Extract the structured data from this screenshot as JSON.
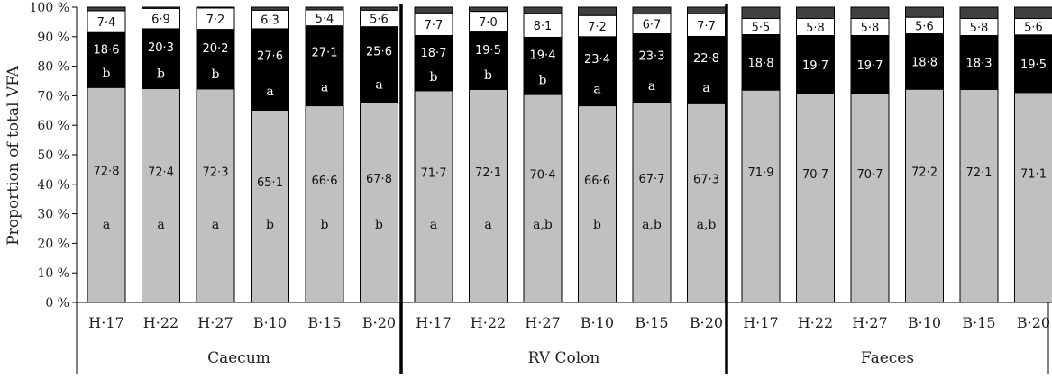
{
  "chart_data": {
    "type": "bar",
    "stacked": true,
    "ylabel": "Proportion of total VFA",
    "ylim": [
      0,
      100
    ],
    "yticks": [
      "0 %",
      "10 %",
      "20 %",
      "30 %",
      "40 %",
      "50 %",
      "60 %",
      "70 %",
      "80 %",
      "90 %",
      "100 %"
    ],
    "grid": false,
    "colors": {
      "bottom": "#c0c0c0",
      "middle": "#000000",
      "upper": "#ffffff",
      "top": "#404040",
      "outline": "#000000"
    },
    "groups": [
      {
        "name": "Caecum",
        "categories": [
          "H·17",
          "H·22",
          "H·27",
          "B·10",
          "B·15",
          "B·20"
        ],
        "bottom": [
          72.8,
          72.4,
          72.3,
          65.1,
          66.6,
          67.8
        ],
        "bottom_text": [
          "72·8",
          "72·4",
          "72·3",
          "65·1",
          "66·6",
          "67·8"
        ],
        "bottom_sig": [
          "a",
          "a",
          "a",
          "b",
          "b",
          "b"
        ],
        "middle": [
          18.6,
          20.3,
          20.2,
          27.6,
          27.1,
          25.6
        ],
        "middle_text": [
          "18·6",
          "20·3",
          "20·2",
          "27·6",
          "27·1",
          "25·6"
        ],
        "middle_sig": [
          "b",
          "b",
          "b",
          "a",
          "a",
          "a"
        ],
        "upper": [
          7.4,
          6.9,
          7.2,
          6.3,
          5.4,
          5.6
        ],
        "upper_text": [
          "7·4",
          "6·9",
          "7·2",
          "6·3",
          "5·4",
          "5·6"
        ]
      },
      {
        "name": "RV Colon",
        "categories": [
          "H·17",
          "H·22",
          "H·27",
          "B·10",
          "B·15",
          "B·20"
        ],
        "bottom": [
          71.7,
          72.1,
          70.4,
          66.6,
          67.7,
          67.3
        ],
        "bottom_text": [
          "71·7",
          "72·1",
          "70·4",
          "66·6",
          "67·7",
          "67·3"
        ],
        "bottom_sig": [
          "a",
          "a",
          "a,b",
          "b",
          "a,b",
          "a,b"
        ],
        "middle": [
          18.7,
          19.5,
          19.4,
          23.4,
          23.3,
          22.8
        ],
        "middle_text": [
          "18·7",
          "19·5",
          "19·4",
          "23·4",
          "23·3",
          "22·8"
        ],
        "middle_sig": [
          "b",
          "b",
          "b",
          "a",
          "a",
          "a"
        ],
        "upper": [
          7.7,
          7.0,
          8.1,
          7.2,
          6.7,
          7.7
        ],
        "upper_text": [
          "7·7",
          "7·0",
          "8·1",
          "7·2",
          "6·7",
          "7·7"
        ]
      },
      {
        "name": "Faeces",
        "categories": [
          "H·17",
          "H·22",
          "H·27",
          "B·10",
          "B·15",
          "B·20"
        ],
        "bottom": [
          71.9,
          70.7,
          70.7,
          72.2,
          72.1,
          71.1
        ],
        "bottom_text": [
          "71·9",
          "70·7",
          "70·7",
          "72·2",
          "72·1",
          "71·1"
        ],
        "bottom_sig": [
          "",
          "",
          "",
          "",
          "",
          ""
        ],
        "middle": [
          18.8,
          19.7,
          19.7,
          18.8,
          18.3,
          19.5
        ],
        "middle_text": [
          "18·8",
          "19·7",
          "19·7",
          "18·8",
          "18·3",
          "19·5"
        ],
        "middle_sig": [
          "",
          "",
          "",
          "",
          "",
          ""
        ],
        "upper": [
          5.5,
          5.8,
          5.8,
          5.6,
          5.8,
          5.6
        ],
        "upper_text": [
          "5·5",
          "5·8",
          "5·8",
          "5·6",
          "5·8",
          "5·6"
        ]
      }
    ]
  }
}
